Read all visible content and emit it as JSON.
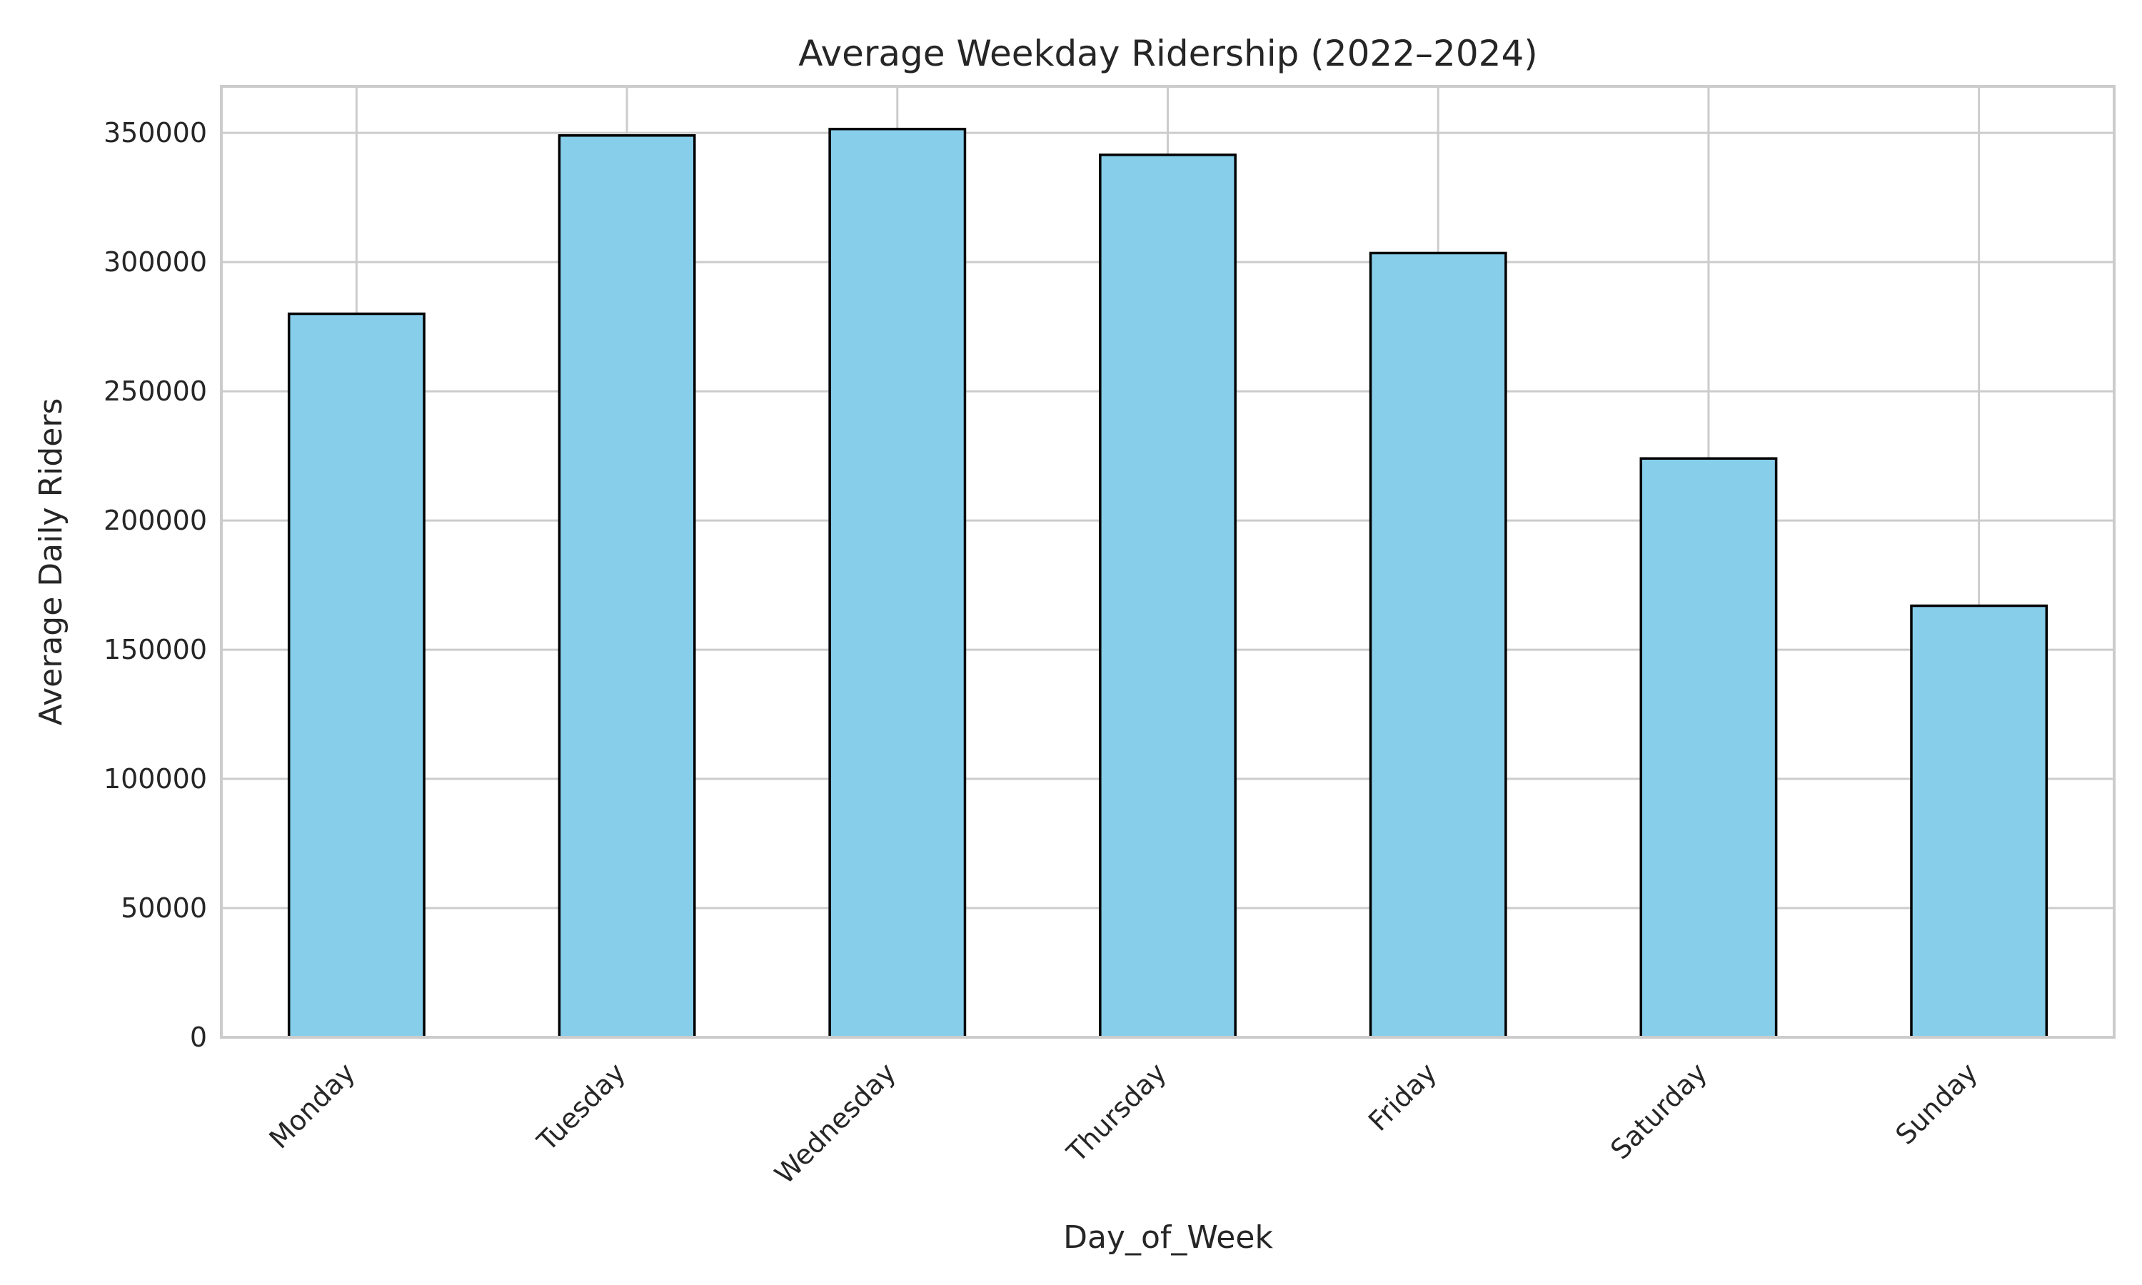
{
  "chart_data": {
    "type": "bar",
    "title": "Average Weekday Ridership (2022–2024)",
    "xlabel": "Day_of_Week",
    "ylabel": "Average Daily Riders",
    "categories": [
      "Monday",
      "Tuesday",
      "Wednesday",
      "Thursday",
      "Friday",
      "Saturday",
      "Sunday"
    ],
    "values": [
      280000,
      349000,
      351500,
      341500,
      303500,
      224000,
      167000
    ],
    "ylim": [
      0,
      368000
    ],
    "yticks": [
      0,
      50000,
      100000,
      150000,
      200000,
      250000,
      300000,
      350000
    ],
    "ytick_labels": [
      "0",
      "50000",
      "100000",
      "150000",
      "200000",
      "250000",
      "300000",
      "350000"
    ],
    "grid": true,
    "colors": {
      "bar_fill": "#87ceeb",
      "bar_edge": "#000000",
      "grid": "#cccccc",
      "text": "#262626"
    }
  }
}
